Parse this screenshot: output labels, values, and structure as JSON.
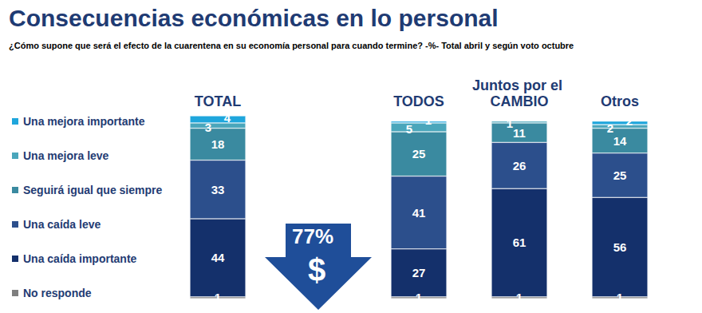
{
  "chart_data": {
    "type": "bar",
    "title": "Consecuencias económicas en lo personal",
    "subtitle": "¿Cómo supone que será el efecto de la cuarentena en su economía personal para cuando termine? -%- Total abril y según voto octubre",
    "categories": [
      "TOTAL",
      null,
      "TODOS",
      "Juntos por el CAMBIO",
      "Otros"
    ],
    "series": [
      {
        "name": "No responde",
        "color": "#7f7f7f",
        "values": [
          1,
          null,
          1,
          1,
          1
        ]
      },
      {
        "name": "Una caída importante",
        "color": "#14306b",
        "values": [
          44,
          null,
          27,
          61,
          56
        ]
      },
      {
        "name": "Una caída leve",
        "color": "#2c4f8c",
        "values": [
          33,
          null,
          41,
          26,
          25
        ]
      },
      {
        "name": "Seguirá igual que siempre",
        "color": "#3a8aa0",
        "values": [
          18,
          null,
          25,
          11,
          14
        ]
      },
      {
        "name": "Una mejora leve",
        "color": "#4aa6bb",
        "values": [
          3,
          null,
          5,
          1,
          2
        ]
      },
      {
        "name": "Una mejora importante",
        "color": "#1fa6dc",
        "values": [
          4,
          null,
          1,
          null,
          2
        ]
      }
    ],
    "stacked": true,
    "data_labels": true,
    "legend": "left",
    "grid": false,
    "tick_labels": "x",
    "ylim": [
      0,
      103
    ],
    "annotations": [
      "77%",
      "$"
    ]
  }
}
